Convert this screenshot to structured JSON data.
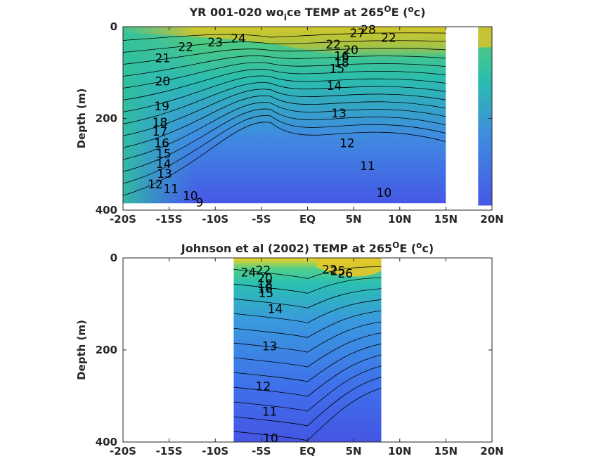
{
  "chart_data": [
    {
      "type": "heatmap",
      "title_parts": [
        "YR 001-020 wo",
        "i",
        "ce TEMP at 265",
        "O",
        "E (",
        "o",
        "c)"
      ],
      "ylabel": "Depth (m)",
      "xlim": [
        -20,
        20
      ],
      "ylim": [
        0,
        400
      ],
      "x_ticks": [
        -20,
        -15,
        -10,
        -5,
        0,
        5,
        10,
        15,
        20
      ],
      "x_tick_labels": [
        "-20S",
        "-15S",
        "-10S",
        "-5S",
        "EQ",
        "5N",
        "10N",
        "15N",
        "20N"
      ],
      "y_ticks": [
        0,
        200,
        400
      ],
      "y_tick_labels": [
        "0",
        "200",
        "400"
      ],
      "data_extent": {
        "x": [
          -20,
          15
        ],
        "depth_max": 385
      },
      "side_strip": {
        "x": [
          18.5,
          20
        ],
        "depth_max": 390
      },
      "contour_labels": [
        {
          "text": "24",
          "x": -7.5,
          "y": 27
        },
        {
          "text": "23",
          "x": -10,
          "y": 35
        },
        {
          "text": "22",
          "x": -13.2,
          "y": 45
        },
        {
          "text": "21",
          "x": -15.7,
          "y": 70
        },
        {
          "text": "20",
          "x": -15.7,
          "y": 120
        },
        {
          "text": "19",
          "x": -15.8,
          "y": 175
        },
        {
          "text": "18",
          "x": -16,
          "y": 210
        },
        {
          "text": "17",
          "x": -16,
          "y": 230
        },
        {
          "text": "16",
          "x": -15.8,
          "y": 255
        },
        {
          "text": "15",
          "x": -15.6,
          "y": 278
        },
        {
          "text": "14",
          "x": -15.6,
          "y": 300
        },
        {
          "text": "13",
          "x": -15.5,
          "y": 322
        },
        {
          "text": "12",
          "x": -16.5,
          "y": 345
        },
        {
          "text": "11",
          "x": -14.8,
          "y": 355
        },
        {
          "text": "10",
          "x": -12.7,
          "y": 370
        },
        {
          "text": "9",
          "x": -11.7,
          "y": 385
        },
        {
          "text": "28",
          "x": 6.6,
          "y": 8
        },
        {
          "text": "27",
          "x": 5.4,
          "y": 15
        },
        {
          "text": "22",
          "x": 8.8,
          "y": 25
        },
        {
          "text": "22",
          "x": 2.8,
          "y": 40
        },
        {
          "text": "20",
          "x": 4.7,
          "y": 52
        },
        {
          "text": "16",
          "x": 3.7,
          "y": 65
        },
        {
          "text": "18",
          "x": 3.7,
          "y": 80
        },
        {
          "text": "15",
          "x": 3.2,
          "y": 93
        },
        {
          "text": "14",
          "x": 2.9,
          "y": 130
        },
        {
          "text": "13",
          "x": 3.4,
          "y": 190
        },
        {
          "text": "12",
          "x": 4.3,
          "y": 255
        },
        {
          "text": "11",
          "x": 6.5,
          "y": 305
        },
        {
          "text": "10",
          "x": 8.3,
          "y": 363
        }
      ]
    },
    {
      "type": "heatmap",
      "title_parts": [
        "Johnson et al (2002) TEMP at 265",
        "O",
        "E (",
        "o",
        "c)"
      ],
      "ylabel": "Depth (m)",
      "xlim": [
        -20,
        20
      ],
      "ylim": [
        0,
        400
      ],
      "x_ticks": [
        -20,
        -15,
        -10,
        -5,
        0,
        5,
        10,
        15,
        20
      ],
      "x_tick_labels": [
        "-20S",
        "-15S",
        "-10S",
        "-5S",
        "EQ",
        "5N",
        "10N",
        "15N",
        "20N"
      ],
      "y_ticks": [
        0,
        200,
        400
      ],
      "y_tick_labels": [
        "0",
        "200",
        "400"
      ],
      "data_extent": {
        "x": [
          -8,
          8
        ],
        "depth_max": 400
      },
      "contour_labels": [
        {
          "text": "24",
          "x": -6.4,
          "y": 33
        },
        {
          "text": "22",
          "x": -4.8,
          "y": 28
        },
        {
          "text": "20",
          "x": -4.6,
          "y": 45
        },
        {
          "text": "18",
          "x": -4.6,
          "y": 58
        },
        {
          "text": "16",
          "x": -4.6,
          "y": 68
        },
        {
          "text": "15",
          "x": -4.5,
          "y": 78
        },
        {
          "text": "14",
          "x": -3.5,
          "y": 112
        },
        {
          "text": "22",
          "x": 2.4,
          "y": 27
        },
        {
          "text": "25",
          "x": 3.3,
          "y": 30
        },
        {
          "text": "26",
          "x": 4.1,
          "y": 35
        },
        {
          "text": "13",
          "x": -4.1,
          "y": 193
        },
        {
          "text": "12",
          "x": -4.8,
          "y": 280
        },
        {
          "text": "11",
          "x": -4.1,
          "y": 335
        },
        {
          "text": "10",
          "x": -4,
          "y": 393
        }
      ]
    }
  ]
}
